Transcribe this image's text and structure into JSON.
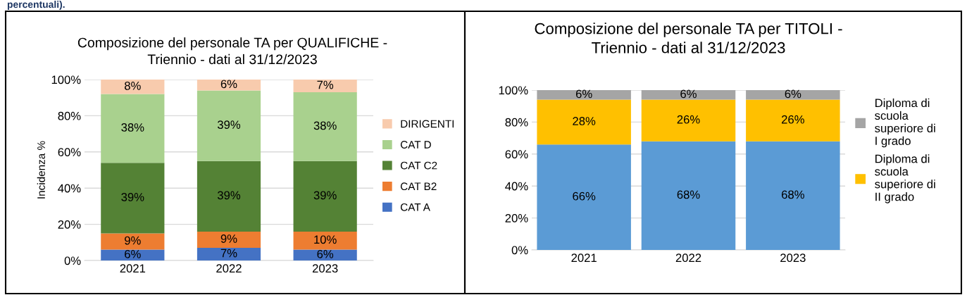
{
  "chart_data": [
    {
      "type": "bar",
      "stacked": true,
      "title": "Composizione del personale TA per QUALIFICHE -\nTriennio - dati al 31/12/2023",
      "ylabel": "Incidenza %",
      "annotations": [
        "percentuali)."
      ],
      "categories": [
        "2021",
        "2022",
        "2023"
      ],
      "series": [
        {
          "name": "CAT A",
          "color": "#4472c4",
          "values": [
            6,
            7,
            6
          ],
          "value_labels": [
            "6%",
            "7%",
            "6%"
          ]
        },
        {
          "name": "CAT B2",
          "color": "#ed7d31",
          "values": [
            9,
            9,
            10
          ],
          "value_labels": [
            "9%",
            "9%",
            "10%"
          ]
        },
        {
          "name": "CAT C2",
          "color": "#548235",
          "values": [
            39,
            39,
            39
          ],
          "value_labels": [
            "39%",
            "39%",
            "39%"
          ]
        },
        {
          "name": "CAT D",
          "color": "#a9d18e",
          "values": [
            38,
            39,
            38
          ],
          "value_labels": [
            "38%",
            "39%",
            "38%"
          ]
        },
        {
          "name": "DIRIGENTI",
          "color": "#f8cbad",
          "values": [
            8,
            6,
            7
          ],
          "value_labels": [
            "8%",
            "6%",
            "7%"
          ]
        }
      ],
      "ylim": [
        0,
        100
      ],
      "yticks": [
        {
          "value": 0,
          "label": "0%"
        },
        {
          "value": 20,
          "label": "20%"
        },
        {
          "value": 40,
          "label": "40%"
        },
        {
          "value": 60,
          "label": "60%"
        },
        {
          "value": 80,
          "label": "80%"
        },
        {
          "value": 100,
          "label": "100%"
        }
      ],
      "grid": "y",
      "legend": "right"
    },
    {
      "type": "bar",
      "stacked": true,
      "title": "Composizione del personale TA per TITOLI -\nTriennio - dati al 31/12/2023",
      "categories": [
        "2021",
        "2022",
        "2023"
      ],
      "series": [
        {
          "color": "#5b9bd5",
          "values": [
            66,
            68,
            68
          ],
          "value_labels": [
            "66%",
            "68%",
            "68%"
          ]
        },
        {
          "name": "Diploma di\nscuola\nsuperiore di\nII grado",
          "color": "#ffc000",
          "values": [
            28,
            26,
            26
          ],
          "value_labels": [
            "28%",
            "26%",
            "26%"
          ]
        },
        {
          "name": "Diploma di\nscuola\nsuperiore di\nI grado",
          "color": "#a5a5a5",
          "values": [
            6,
            6,
            6
          ],
          "value_labels": [
            "6%",
            "6%",
            "6%"
          ]
        }
      ],
      "ylim": [
        0,
        100
      ],
      "yticks": [
        {
          "value": 0,
          "label": "0%"
        },
        {
          "value": 20,
          "label": "20%"
        },
        {
          "value": 40,
          "label": "40%"
        },
        {
          "value": 60,
          "label": "60%"
        },
        {
          "value": 80,
          "label": "80%"
        },
        {
          "value": 100,
          "label": "100%"
        }
      ],
      "grid": "y",
      "legend": "right"
    }
  ]
}
